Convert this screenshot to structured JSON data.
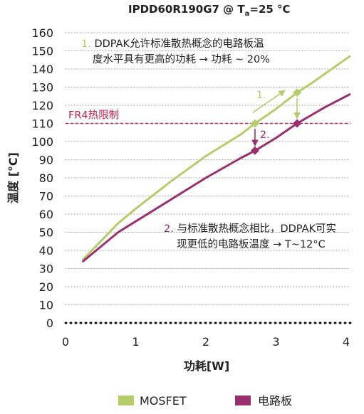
{
  "chart_data": {
    "type": "line",
    "title_main": "IPDD60R190G7 @ T",
    "title_sub": "a",
    "title_tail": "=25 °C",
    "xlabel": "功耗[W]",
    "ylabel": "温度 [°C]",
    "xlim": [
      0,
      4
    ],
    "ylim": [
      0,
      160
    ],
    "xticks": [
      "0",
      "1",
      "2",
      "3",
      "4"
    ],
    "yticks": [
      "0",
      "10",
      "20",
      "30",
      "40",
      "50",
      "60",
      "70",
      "80",
      "90",
      "100",
      "110",
      "120",
      "130",
      "140",
      "150",
      "160"
    ],
    "grid": "horizontal dotted",
    "series": [
      {
        "name": "MOSFET",
        "color": "#b5cc6b",
        "x": [
          0.25,
          0.5,
          0.75,
          1.0,
          1.5,
          2.0,
          2.5,
          2.7,
          3.0,
          3.3,
          3.5,
          4.05
        ],
        "y": [
          35,
          45,
          55,
          63,
          78,
          92,
          104,
          110,
          118,
          127,
          132,
          147
        ]
      },
      {
        "name": "电路板",
        "color": "#9b2f6e",
        "x": [
          0.25,
          0.5,
          0.75,
          1.0,
          1.5,
          2.0,
          2.5,
          2.7,
          3.0,
          3.3,
          3.7,
          4.05
        ],
        "y": [
          34,
          42,
          50,
          56,
          68,
          80,
          91,
          95,
          102,
          110,
          119,
          126
        ]
      }
    ],
    "reference_line": {
      "label": "FR4热限制",
      "y": 110,
      "color": "#c8234a"
    },
    "markers": [
      {
        "series": 0,
        "x": 2.7,
        "y": 110
      },
      {
        "series": 0,
        "x": 3.3,
        "y": 127
      },
      {
        "series": 1,
        "x": 2.7,
        "y": 95
      },
      {
        "series": 1,
        "x": 3.3,
        "y": 110
      }
    ],
    "annotations": [
      {
        "number": "1.",
        "lines": [
          "DDPAK允许标准散热概念的电路板温",
          "度水平具有更高的功耗 → 功耗 ~ 20%"
        ]
      },
      {
        "number": "2.",
        "lines": [
          "与标准散热概念相比，DDPAK可实",
          "现更低的电路板温度 → T~12°C"
        ]
      }
    ],
    "arrow_labels": [
      "1.",
      "2."
    ],
    "legend": {
      "position": "bottom",
      "entries": [
        "MOSFET",
        "电路板"
      ]
    }
  }
}
